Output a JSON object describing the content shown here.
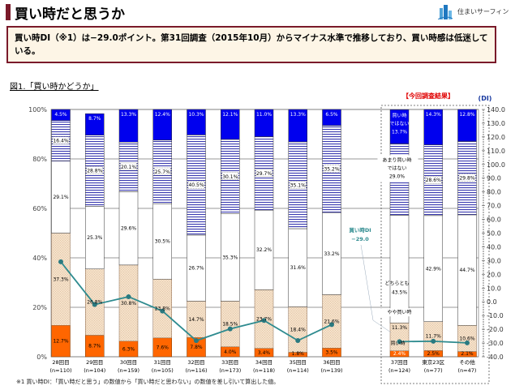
{
  "header": {
    "title": "買い時だと思うか",
    "logo_text": "住まいサーフィン"
  },
  "summary": "買い時DI（※1）は−29.0ポイント。第31回調査（2015年10月）からマイナス水準で推移しており、買い時感は低迷している。",
  "figure_title": "図1.「買い時かどうか」",
  "current_label": "【今回調査結果】",
  "footnote": "※1 買い時DI：「買い時だと思う」の数値から「買い時だと思わない」の数値を差し引いて算出した値。",
  "chart_data": {
    "type": "bar",
    "stacked": true,
    "categories": [
      {
        "name": "28回目",
        "n": "(n=110)"
      },
      {
        "name": "29回目",
        "n": "(n=104)"
      },
      {
        "name": "30回目",
        "n": "(n=159)"
      },
      {
        "name": "31回目",
        "n": "(n=105)"
      },
      {
        "name": "32回目",
        "n": "(n=116)"
      },
      {
        "name": "33回目",
        "n": "(n=173)"
      },
      {
        "name": "34回目",
        "n": "(n=118)"
      },
      {
        "name": "35回目",
        "n": "(n=114)"
      },
      {
        "name": "36回目",
        "n": "(n=139)"
      },
      {
        "name": "37回目",
        "n": "(n=124)"
      },
      {
        "name": "東京23区",
        "n": "(n=77)"
      },
      {
        "name": "その他",
        "n": "(n=47)"
      }
    ],
    "series": [
      {
        "name": "買い時",
        "color": "#ff6600",
        "values": [
          12.7,
          8.7,
          6.3,
          7.6,
          7.8,
          4.0,
          3.4,
          1.8,
          3.5,
          2.4,
          2.5,
          2.1
        ]
      },
      {
        "name": "やや買い時",
        "color": "#f6dfc3",
        "values": [
          37.3,
          26.8,
          30.8,
          23.8,
          14.7,
          18.5,
          23.7,
          18.4,
          21.6,
          11.3,
          11.7,
          10.6
        ]
      },
      {
        "name": "どちらとも",
        "color": "#ffffff",
        "values": [
          29.1,
          25.3,
          29.6,
          30.5,
          26.7,
          35.3,
          32.2,
          31.6,
          33.2,
          43.5,
          42.9,
          44.7
        ]
      },
      {
        "name": "あまり買い時ではない",
        "color": "#3a3ab0",
        "values": [
          16.4,
          28.8,
          20.1,
          25.7,
          40.5,
          30.1,
          29.7,
          35.1,
          35.2,
          29.0,
          28.6,
          29.8
        ]
      },
      {
        "name": "買い時ではない",
        "color": "#0000ee",
        "values": [
          4.5,
          8.7,
          13.3,
          12.4,
          10.3,
          12.1,
          11.0,
          13.3,
          6.5,
          13.7,
          14.3,
          12.8
        ]
      }
    ],
    "value_labels": [
      [
        "12.7%",
        "8.7%",
        "6.3%",
        "7.6%",
        "7.8%",
        "4.0%",
        "3.4%",
        "1.8%",
        "3.5%",
        "2.4%",
        "2.5%",
        "2.1%"
      ],
      [
        "37.3%",
        "26.8%",
        "30.8%",
        "23.8%",
        "14.7%",
        "18.5%",
        "23.7%",
        "18.4%",
        "21.6%",
        "11.3%",
        "11.7%",
        "10.6%"
      ],
      [
        "29.1%",
        "25.3%",
        "29.6%",
        "30.5%",
        "26.7%",
        "35.3%",
        "32.2%",
        "31.6%",
        "33.2%",
        "43.5%",
        "42.9%",
        "44.7%"
      ],
      [
        "16.4%",
        "28.8%",
        "20.1%",
        "25.7%",
        "40.5%",
        "30.1%",
        "29.7%",
        "35.1%",
        "35.2%",
        "29.0%",
        "28.6%",
        "29.8%"
      ],
      [
        "4.5%",
        "8.7%",
        "13.3%",
        "12.4%",
        "10.3%",
        "12.1%",
        "11.0%",
        "13.3%",
        "6.5%",
        "13.7%",
        "14.3%",
        "12.8%"
      ]
    ],
    "di": {
      "name": "買い時DI",
      "color": "#2e8b8f",
      "values": [
        29.1,
        -2.0,
        3.7,
        -6.7,
        -28.3,
        -19.7,
        -13.6,
        -28.2,
        -16.6,
        -29.0,
        -28.7,
        -29.9
      ],
      "callout": [
        "買い時DI",
        "−29.0"
      ]
    },
    "annotations": {
      "s4": [
        "買い時",
        "ではない"
      ],
      "s3": [
        "あまり買い時",
        "ではない"
      ],
      "s2": [
        "どちらとも"
      ],
      "s1": [
        "やや買い時"
      ],
      "s0": [
        "買い時"
      ]
    },
    "y_left": {
      "ticks": [
        "0%",
        "20%",
        "40%",
        "60%",
        "80%",
        "100%"
      ],
      "ylim": [
        0,
        100
      ]
    },
    "y_right": {
      "label": "(DI)",
      "ylim": [
        -40,
        140
      ],
      "ticks": [
        "-40.0",
        "-30.0",
        "-20.0",
        "-10.0",
        "0.0",
        "10.0",
        "20.0",
        "30.0",
        "40.0",
        "50.0",
        "60.0",
        "70.0",
        "80.0",
        "90.0",
        "100.0",
        "110.0",
        "120.0",
        "130.0",
        "140.0"
      ]
    },
    "grid": true
  }
}
